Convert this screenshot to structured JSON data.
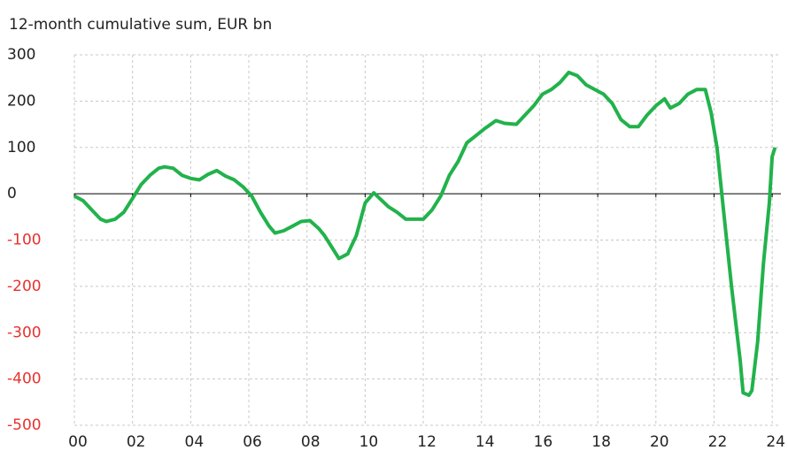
{
  "chart_data": {
    "type": "line",
    "title": "12-month cumulative sum, EUR bn",
    "x": [
      2000.0,
      2000.3,
      2000.6,
      2000.9,
      2001.1,
      2001.4,
      2001.7,
      2002.0,
      2002.3,
      2002.6,
      2002.9,
      2003.1,
      2003.4,
      2003.7,
      2004.0,
      2004.3,
      2004.6,
      2004.9,
      2005.2,
      2005.5,
      2005.8,
      2006.1,
      2006.4,
      2006.7,
      2006.9,
      2007.2,
      2007.5,
      2007.8,
      2008.1,
      2008.4,
      2008.6,
      2008.9,
      2009.1,
      2009.4,
      2009.7,
      2010.0,
      2010.3,
      2010.5,
      2010.8,
      2011.1,
      2011.4,
      2011.7,
      2012.0,
      2012.3,
      2012.6,
      2012.9,
      2013.2,
      2013.5,
      2013.8,
      2014.1,
      2014.5,
      2014.8,
      2015.2,
      2015.5,
      2015.8,
      2016.1,
      2016.4,
      2016.7,
      2017.0,
      2017.3,
      2017.6,
      2017.9,
      2018.2,
      2018.5,
      2018.8,
      2019.1,
      2019.4,
      2019.7,
      2020.0,
      2020.3,
      2020.5,
      2020.8,
      2021.1,
      2021.4,
      2021.7,
      2021.9,
      2022.1,
      2022.3,
      2022.6,
      2022.9,
      2023.0,
      2023.2,
      2023.3,
      2023.5,
      2023.7,
      2023.9,
      2024.0,
      2024.1
    ],
    "series": [
      {
        "name": "12-month cumulative sum",
        "color": "#22b24c",
        "values": [
          -5,
          -15,
          -35,
          -55,
          -60,
          -55,
          -40,
          -10,
          20,
          40,
          55,
          58,
          55,
          40,
          33,
          30,
          42,
          50,
          38,
          30,
          15,
          -5,
          -40,
          -70,
          -85,
          -80,
          -70,
          -60,
          -58,
          -75,
          -90,
          -120,
          -140,
          -130,
          -90,
          -20,
          2,
          -10,
          -28,
          -40,
          -55,
          -55,
          -55,
          -35,
          -5,
          40,
          70,
          110,
          125,
          140,
          158,
          152,
          150,
          170,
          190,
          215,
          225,
          240,
          262,
          255,
          235,
          225,
          215,
          195,
          160,
          145,
          145,
          170,
          190,
          205,
          185,
          195,
          215,
          225,
          225,
          175,
          100,
          -20,
          -200,
          -360,
          -430,
          -435,
          -425,
          -320,
          -150,
          -20,
          80,
          100
        ]
      }
    ],
    "xlim": [
      2000,
      2024.3
    ],
    "xticks": [
      {
        "value": 2000,
        "label": "00"
      },
      {
        "value": 2002,
        "label": "02"
      },
      {
        "value": 2004,
        "label": "04"
      },
      {
        "value": 2006,
        "label": "06"
      },
      {
        "value": 2008,
        "label": "08"
      },
      {
        "value": 2010,
        "label": "10"
      },
      {
        "value": 2012,
        "label": "12"
      },
      {
        "value": 2014,
        "label": "14"
      },
      {
        "value": 2016,
        "label": "16"
      },
      {
        "value": 2018,
        "label": "18"
      },
      {
        "value": 2020,
        "label": "20"
      },
      {
        "value": 2022,
        "label": "22"
      },
      {
        "value": 2024,
        "label": "24"
      }
    ],
    "ylim": [
      -500,
      300
    ],
    "yticks": [
      -500,
      -400,
      -300,
      -200,
      -100,
      0,
      100,
      200,
      300
    ],
    "grid": true,
    "negative_label_color": "#e8312f"
  }
}
